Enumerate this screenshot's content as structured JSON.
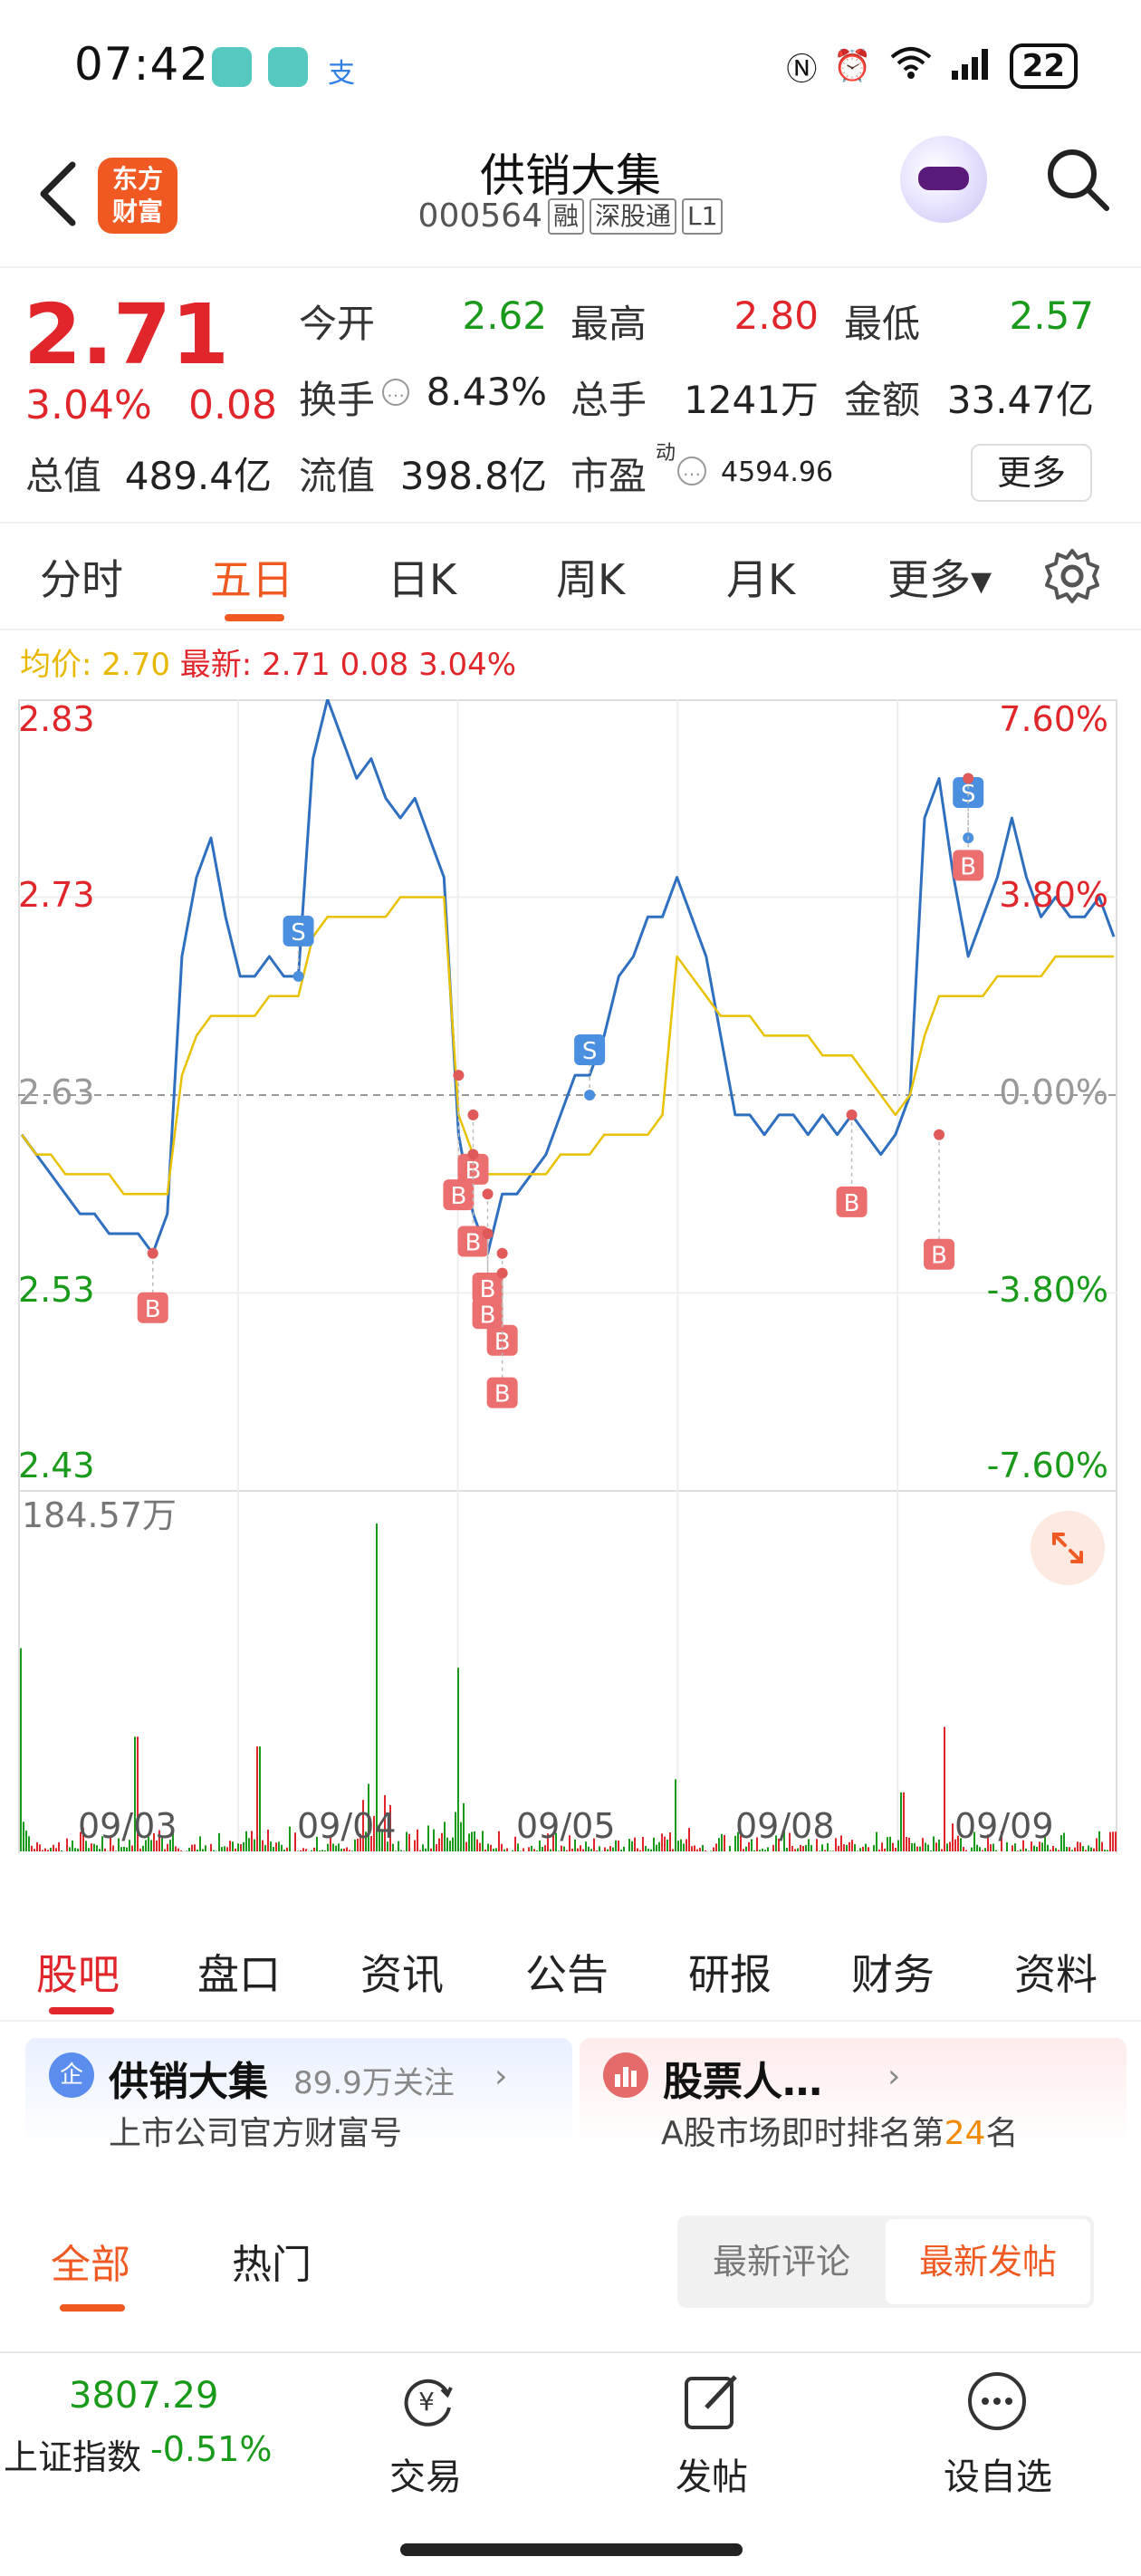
{
  "status_bar": {
    "time": "07:42",
    "battery": "22"
  },
  "header": {
    "logo_line1": "东方",
    "logo_line2": "财富",
    "stock_name": "供销大集",
    "stock_code": "000564",
    "tags": [
      "融",
      "深股通",
      "L1"
    ]
  },
  "quote": {
    "price": "2.71",
    "change_pct": "3.04%",
    "change_abs": "0.08",
    "open_label": "今开",
    "open": "2.62",
    "high_label": "最高",
    "high": "2.80",
    "low_label": "最低",
    "low": "2.57",
    "turnover_label": "换手",
    "turnover": "8.43%",
    "volume_label": "总手",
    "volume": "1241万",
    "amount_label": "金额",
    "amount": "33.47亿",
    "mktcap_label": "总值",
    "mktcap": "489.4亿",
    "float_label": "流值",
    "float": "398.8亿",
    "pe_label": "市盈",
    "pe_sup": "动",
    "pe": "4594.96",
    "more": "更多"
  },
  "tabs": [
    "分时",
    "五日",
    "日K",
    "周K",
    "月K",
    "更多▾"
  ],
  "legend": {
    "avg_label": "均价:",
    "avg": "2.70",
    "latest_label": "最新:",
    "latest": "2.71 0.08 3.04%"
  },
  "chart_data": {
    "type": "line",
    "title": "",
    "x_ticks": [
      "09/03",
      "09/04",
      "09/05",
      "09/08",
      "09/09"
    ],
    "y_left_ticks": [
      "2.83",
      "2.73",
      "2.63",
      "2.53",
      "2.43"
    ],
    "y_right_ticks": [
      "7.60%",
      "3.80%",
      "0.00%",
      "-3.80%",
      "-7.60%"
    ],
    "ylim": [
      2.43,
      2.83
    ],
    "prev_close": 2.63,
    "volume_max_label": "184.57万",
    "series": [
      {
        "name": "最新",
        "values": [
          2.61,
          2.6,
          2.59,
          2.58,
          2.57,
          2.57,
          2.56,
          2.56,
          2.56,
          2.55,
          2.57,
          2.7,
          2.74,
          2.76,
          2.72,
          2.69,
          2.69,
          2.7,
          2.69,
          2.69,
          2.8,
          2.83,
          2.81,
          2.79,
          2.8,
          2.78,
          2.77,
          2.78,
          2.76,
          2.74,
          2.61,
          2.57,
          2.55,
          2.58,
          2.58,
          2.59,
          2.6,
          2.62,
          2.64,
          2.64,
          2.66,
          2.69,
          2.7,
          2.72,
          2.72,
          2.74,
          2.72,
          2.7,
          2.66,
          2.62,
          2.62,
          2.61,
          2.62,
          2.62,
          2.61,
          2.62,
          2.61,
          2.62,
          2.61,
          2.6,
          2.61,
          2.63,
          2.77,
          2.79,
          2.74,
          2.7,
          2.72,
          2.74,
          2.77,
          2.74,
          2.72,
          2.73,
          2.72,
          2.72,
          2.73,
          2.71
        ]
      },
      {
        "name": "均价",
        "values": [
          2.61,
          2.6,
          2.6,
          2.59,
          2.59,
          2.59,
          2.59,
          2.58,
          2.58,
          2.58,
          2.58,
          2.64,
          2.66,
          2.67,
          2.67,
          2.67,
          2.67,
          2.68,
          2.68,
          2.68,
          2.71,
          2.72,
          2.72,
          2.72,
          2.72,
          2.72,
          2.73,
          2.73,
          2.73,
          2.73,
          2.62,
          2.6,
          2.59,
          2.59,
          2.59,
          2.59,
          2.59,
          2.6,
          2.6,
          2.6,
          2.61,
          2.61,
          2.61,
          2.61,
          2.62,
          2.7,
          2.69,
          2.68,
          2.67,
          2.67,
          2.67,
          2.66,
          2.66,
          2.66,
          2.66,
          2.65,
          2.65,
          2.65,
          2.64,
          2.63,
          2.62,
          2.63,
          2.66,
          2.68,
          2.68,
          2.68,
          2.68,
          2.69,
          2.69,
          2.69,
          2.69,
          2.7,
          2.7,
          2.7,
          2.7,
          2.7
        ]
      }
    ],
    "trade_marks": [
      {
        "type": "B",
        "idx": 9,
        "price": 2.55
      },
      {
        "type": "S",
        "idx": 19,
        "price": 2.69
      },
      {
        "type": "B",
        "idx": 30,
        "price": 2.64
      },
      {
        "type": "B",
        "idx": 31,
        "price": 2.62
      },
      {
        "type": "B",
        "idx": 31,
        "price": 2.6
      },
      {
        "type": "B",
        "idx": 32,
        "price": 2.58
      },
      {
        "type": "B",
        "idx": 32,
        "price": 2.56
      },
      {
        "type": "B",
        "idx": 33,
        "price": 2.55
      },
      {
        "type": "B",
        "idx": 33,
        "price": 2.54
      },
      {
        "type": "S",
        "idx": 39,
        "price": 2.63
      },
      {
        "type": "B",
        "idx": 57,
        "price": 2.62
      },
      {
        "type": "B",
        "idx": 63,
        "price": 2.61
      },
      {
        "type": "S",
        "idx": 65,
        "price": 2.76
      },
      {
        "type": "B",
        "idx": 65,
        "price": 2.79
      }
    ]
  },
  "sub_tabs": [
    "股吧",
    "盘口",
    "资讯",
    "公告",
    "研报",
    "财务",
    "资料"
  ],
  "cards": {
    "left": {
      "icon": "企",
      "title": "供销大集",
      "follow": "89.9万关注",
      "chevron": "›",
      "sub": "上市公司官方财富号"
    },
    "right": {
      "title": "股票人…",
      "chevron": "›",
      "sub_prefix": "A股市场即时排名第",
      "rank": "24",
      "sub_suffix": "名"
    }
  },
  "feed": {
    "tab_all": "全部",
    "tab_hot": "热门",
    "seg_a": "最新评论",
    "seg_b": "最新发帖"
  },
  "bottom": {
    "index_value": "3807.29",
    "index_name": "上证指数",
    "index_change": "-0.51%",
    "trade": "交易",
    "post": "发帖",
    "watchlist": "设自选"
  },
  "colors": {
    "up": "#e0262b",
    "down": "#1a9a1a",
    "accent": "#f05a22",
    "price_line": "#2f6fbf",
    "avg_line": "#e8c100"
  },
  "icons": [
    "back-arrow-icon",
    "search-icon",
    "settings-gear-icon",
    "expand-icon",
    "yuan-exchange-icon",
    "edit-post-icon",
    "more-dots-icon"
  ]
}
